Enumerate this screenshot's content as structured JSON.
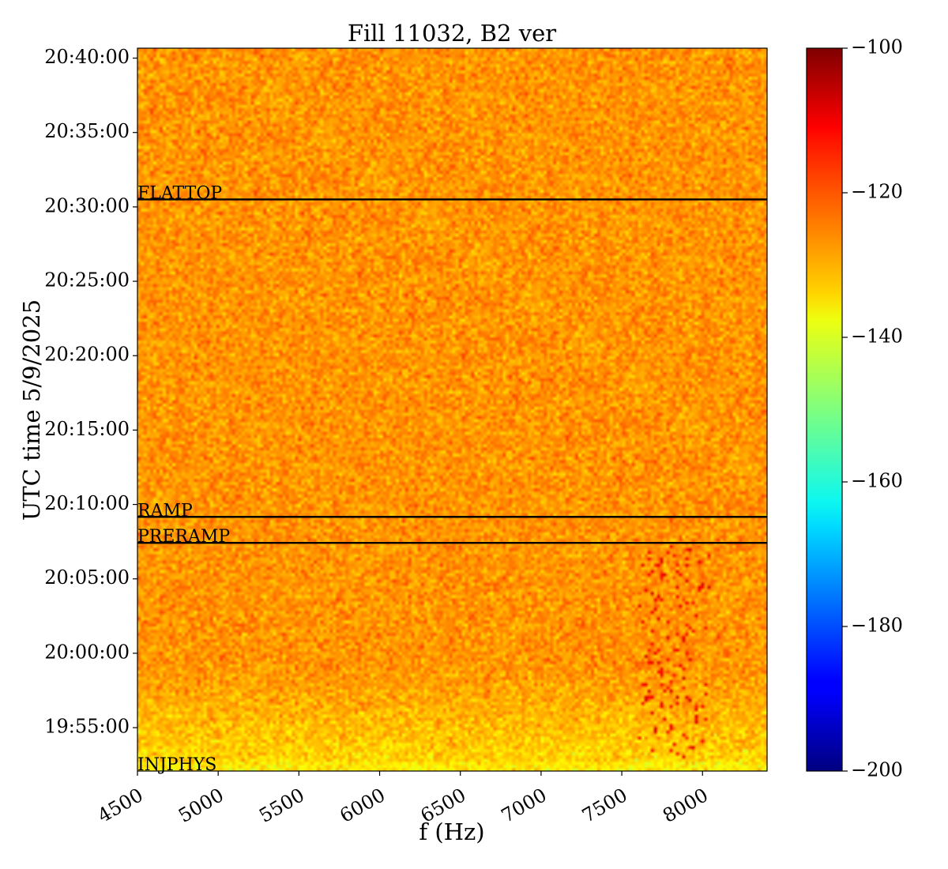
{
  "chart_data": {
    "type": "heatmap",
    "title": "Fill 11032, B2 ver",
    "xlabel": "f (Hz)",
    "ylabel": "UTC time 5/9/2025",
    "xlim": [
      4500,
      8400
    ],
    "x_ticks": [
      4500,
      5000,
      5500,
      6000,
      6500,
      7000,
      7500,
      8000
    ],
    "x_tick_labels": [
      "4500",
      "5000",
      "5500",
      "6000",
      "6500",
      "7000",
      "7500",
      "8000"
    ],
    "ylim": [
      "19:52:05",
      "20:40:40"
    ],
    "y_ticks": [
      "19:55:00",
      "20:00:00",
      "20:05:00",
      "20:10:00",
      "20:15:00",
      "20:20:00",
      "20:25:00",
      "20:30:00",
      "20:35:00",
      "20:40:00"
    ],
    "colorscale": "jet",
    "color_range": [
      -200,
      -100
    ],
    "colorbar_ticks": [
      -100,
      -120,
      -140,
      -160,
      -180,
      -200
    ],
    "colorbar_tick_labels": [
      "−100",
      "−120",
      "−140",
      "−160",
      "−180",
      "−200"
    ],
    "background_level_db": -127,
    "early_level_db": -134,
    "mode_lines": [
      {
        "label": "FLATTOP",
        "time": "20:30:30"
      },
      {
        "label": "RAMP",
        "time": "20:09:10"
      },
      {
        "label": "PRERAMP",
        "time": "20:07:25"
      },
      {
        "label": "INJPHYS",
        "time": "19:52:05"
      }
    ],
    "hot_band": {
      "f_min": 7600,
      "f_max": 8050,
      "t_start": "19:52:50",
      "t_end": "20:07:25",
      "level_db": -112
    }
  }
}
